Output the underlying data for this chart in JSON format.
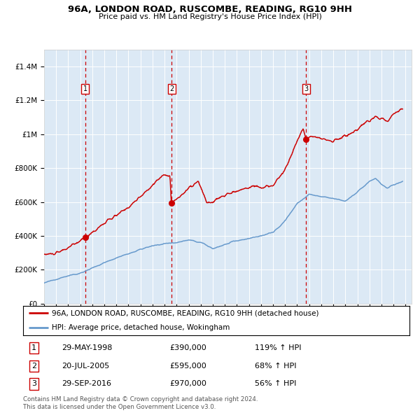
{
  "title": "96A, LONDON ROAD, RUSCOMBE, READING, RG10 9HH",
  "subtitle": "Price paid vs. HM Land Registry's House Price Index (HPI)",
  "sale_color": "#cc0000",
  "hpi_color": "#6699cc",
  "plot_bg": "#dce9f5",
  "sale_prices": [
    390000,
    595000,
    970000
  ],
  "sale_labels": [
    "1",
    "2",
    "3"
  ],
  "sale_label_info": [
    {
      "num": "1",
      "date": "29-MAY-1998",
      "price": "£390,000",
      "hpi": "119% ↑ HPI"
    },
    {
      "num": "2",
      "date": "20-JUL-2005",
      "price": "£595,000",
      "hpi": "68% ↑ HPI"
    },
    {
      "num": "3",
      "date": "29-SEP-2016",
      "price": "£970,000",
      "hpi": "56% ↑ HPI"
    }
  ],
  "legend_line1": "96A, LONDON ROAD, RUSCOMBE, READING, RG10 9HH (detached house)",
  "legend_line2": "HPI: Average price, detached house, Wokingham",
  "footer1": "Contains HM Land Registry data © Crown copyright and database right 2024.",
  "footer2": "This data is licensed under the Open Government Licence v3.0.",
  "ylim": [
    0,
    1500000
  ],
  "yticks": [
    0,
    200000,
    400000,
    600000,
    800000,
    1000000,
    1200000,
    1400000
  ],
  "ytick_labels": [
    "£0",
    "£200K",
    "£400K",
    "£600K",
    "£800K",
    "£1M",
    "£1.2M",
    "£1.4M"
  ],
  "xlim_start": 1995.0,
  "xlim_end": 2025.5,
  "hpi_anchors_t": [
    1995.0,
    1996.0,
    1997.0,
    1998.0,
    1999.0,
    2000.0,
    2001.0,
    2002.0,
    2003.0,
    2004.0,
    2005.0,
    2006.0,
    2007.0,
    2008.0,
    2009.0,
    2010.0,
    2011.0,
    2012.0,
    2013.0,
    2014.0,
    2015.0,
    2016.0,
    2017.0,
    2018.0,
    2019.0,
    2020.0,
    2021.0,
    2022.0,
    2022.5,
    2023.0,
    2023.5,
    2024.0,
    2024.75
  ],
  "hpi_anchors_p": [
    120000,
    145000,
    165000,
    180000,
    210000,
    240000,
    270000,
    295000,
    320000,
    340000,
    355000,
    360000,
    375000,
    360000,
    325000,
    348000,
    370000,
    385000,
    400000,
    420000,
    490000,
    590000,
    645000,
    630000,
    620000,
    605000,
    660000,
    720000,
    740000,
    700000,
    685000,
    700000,
    720000
  ],
  "red_anchors_t": [
    1995.0,
    1996.0,
    1997.0,
    1998.0,
    1998.42,
    1999.0,
    2000.0,
    2001.0,
    2002.0,
    2003.0,
    2004.0,
    2004.8,
    2005.0,
    2005.45,
    2005.55,
    2006.0,
    2007.0,
    2007.8,
    2008.5,
    2009.0,
    2009.5,
    2010.0,
    2011.0,
    2012.0,
    2012.5,
    2013.0,
    2013.5,
    2014.0,
    2015.0,
    2016.0,
    2016.5,
    2016.75,
    2017.0,
    2017.5,
    2018.0,
    2019.0,
    2020.0,
    2021.0,
    2021.5,
    2022.0,
    2022.5,
    2023.0,
    2023.5,
    2024.0,
    2024.5,
    2024.75
  ],
  "red_anchors_p": [
    290000,
    295000,
    330000,
    370000,
    390000,
    420000,
    475000,
    520000,
    570000,
    630000,
    700000,
    755000,
    760000,
    760000,
    595000,
    615000,
    680000,
    720000,
    595000,
    600000,
    620000,
    640000,
    665000,
    685000,
    700000,
    680000,
    690000,
    700000,
    790000,
    960000,
    1030000,
    970000,
    985000,
    995000,
    970000,
    960000,
    990000,
    1020000,
    1060000,
    1080000,
    1100000,
    1095000,
    1080000,
    1120000,
    1140000,
    1150000
  ]
}
